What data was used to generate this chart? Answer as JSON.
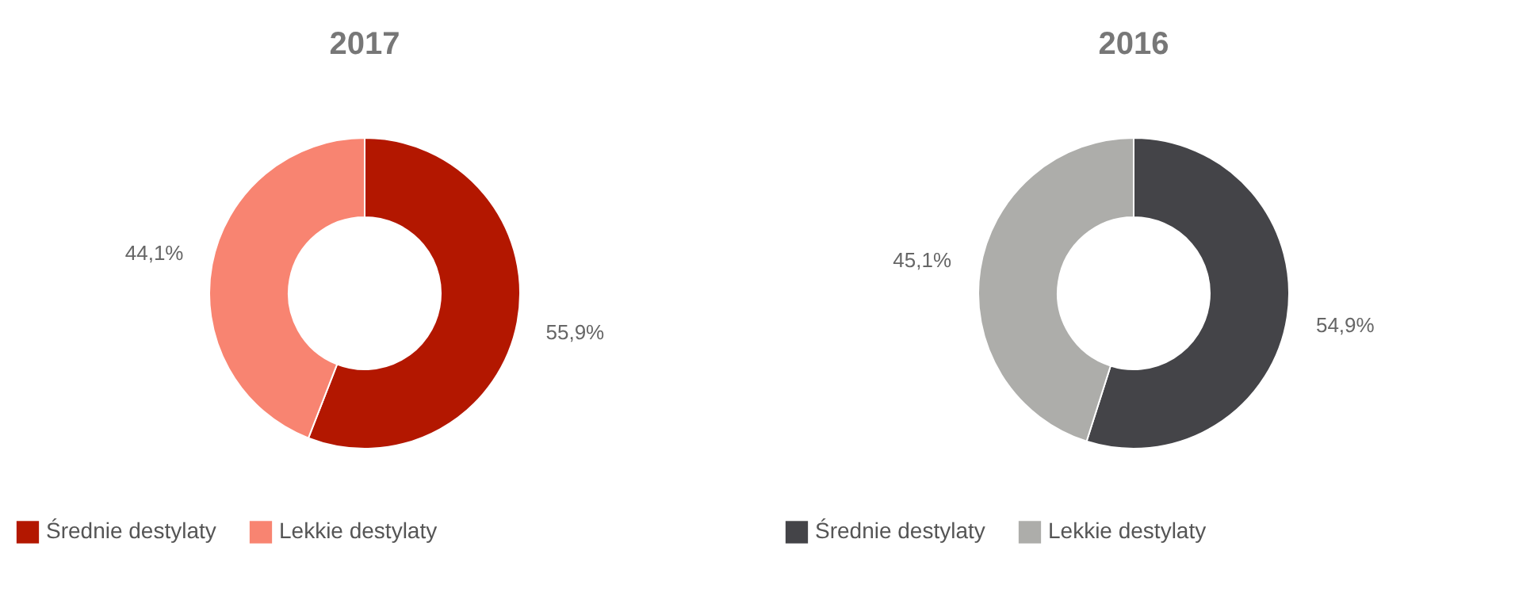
{
  "chart_data": [
    {
      "type": "donut",
      "title": "2017",
      "categories": [
        "Średnie destylaty",
        "Lekkie destylaty"
      ],
      "values": [
        55.9,
        44.1
      ],
      "colors": [
        "#b31700",
        "#f88471"
      ],
      "value_labels": [
        "55,9%",
        "44,1%"
      ],
      "legend": "bottom"
    },
    {
      "type": "donut",
      "title": "2016",
      "categories": [
        "Średnie destylaty",
        "Lekkie destylaty"
      ],
      "values": [
        54.9,
        45.1
      ],
      "colors": [
        "#444448",
        "#adadaa"
      ],
      "value_labels": [
        "54,9%",
        "45,1%"
      ],
      "legend": "bottom"
    }
  ]
}
